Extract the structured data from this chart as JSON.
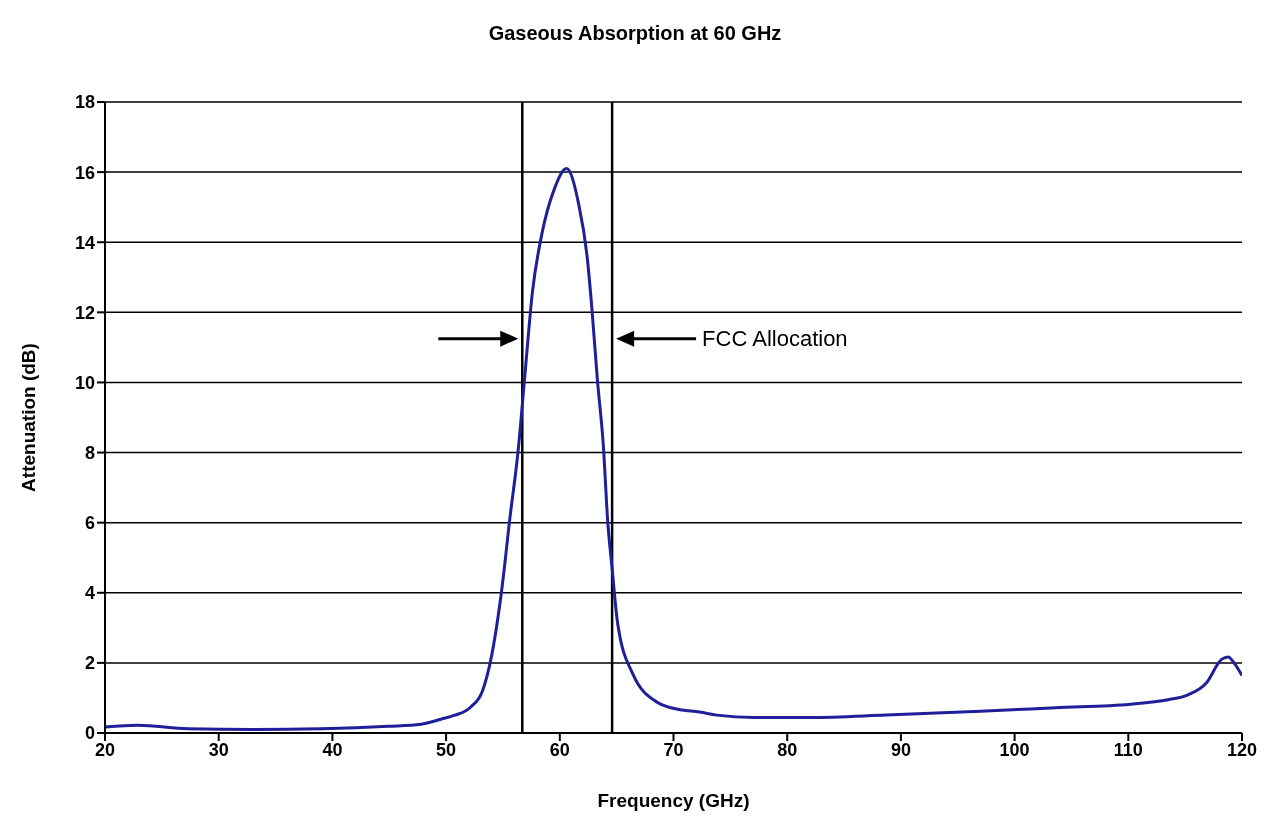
{
  "chart_data": {
    "type": "line",
    "title": "Gaseous Absorption at 60 GHz",
    "xlabel": "Frequency (GHz)",
    "ylabel": "Attenuation (dB)",
    "series": [
      {
        "color": "#1f1f99",
        "x": [
          20,
          22.9,
          27.3,
          33.1,
          39,
          44.9,
          47.8,
          49.6,
          50.7,
          52.2,
          53.2,
          54.0,
          54.9,
          55.6,
          56.35,
          56.9,
          57.6,
          58.4,
          59.5,
          60.6,
          61.65,
          62.4,
          62.8,
          63.3,
          63.85,
          64.2,
          64.6,
          65.1,
          66.4,
          68.6,
          70.5,
          72.3,
          73.8,
          77.1,
          82,
          88.7,
          97,
          103.6,
          110.2,
          113.5,
          115.2,
          116.9,
          118.2,
          118.8,
          119.3,
          120
        ],
        "values": [
          0.17,
          0.22,
          0.12,
          0.1,
          0.12,
          0.19,
          0.25,
          0.4,
          0.5,
          0.75,
          1.2,
          2.2,
          4.1,
          6.1,
          8.1,
          10.1,
          12.6,
          14.2,
          15.5,
          16.1,
          15.1,
          13.6,
          12.2,
          10.1,
          8.1,
          6.1,
          4.7,
          3.1,
          1.7,
          0.87,
          0.67,
          0.6,
          0.51,
          0.44,
          0.44,
          0.51,
          0.62,
          0.72,
          0.82,
          0.95,
          1.08,
          1.44,
          2.1,
          2.17,
          2.0,
          1.64
        ]
      }
    ],
    "xlim": [
      20,
      120
    ],
    "xticks": [
      20,
      30,
      40,
      50,
      60,
      70,
      80,
      90,
      100,
      110,
      120
    ],
    "ylim": [
      0,
      18
    ],
    "yticks": [
      0,
      2,
      4,
      6,
      8,
      10,
      12,
      14,
      16,
      18
    ],
    "grid": "y",
    "marker": "none",
    "line_style": "solid",
    "ref_lines": [
      {
        "axis": "x",
        "value": 56.7,
        "color": "#000000"
      },
      {
        "axis": "x",
        "value": 64.6,
        "color": "#000000"
      }
    ],
    "annotations": [
      "FCC Allocation"
    ]
  }
}
